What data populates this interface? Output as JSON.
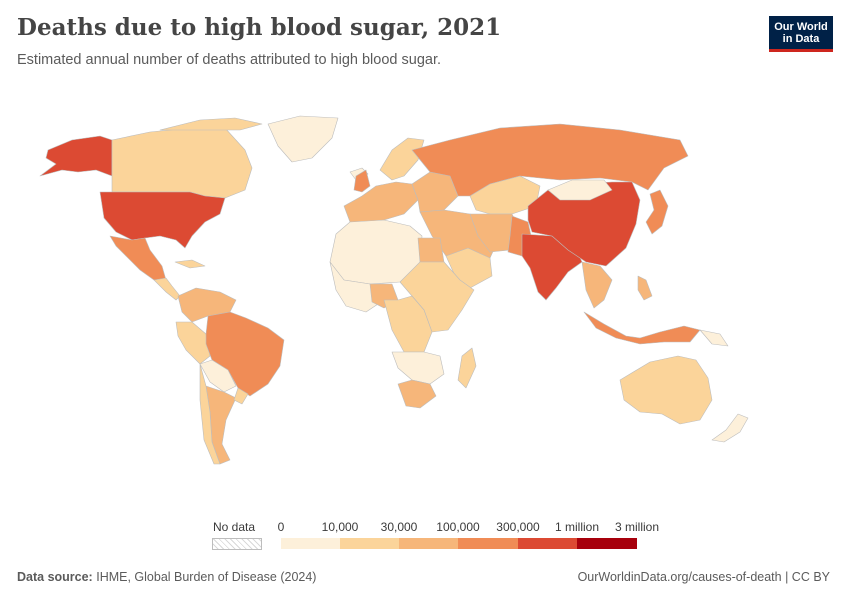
{
  "header": {
    "title": "Deaths due to high blood sugar, 2021",
    "subtitle": "Estimated annual number of deaths attributed to high blood sugar."
  },
  "logo": {
    "line1": "Our World",
    "line2": "in Data"
  },
  "legend": {
    "no_data_label": "No data",
    "ticks": [
      "0",
      "10,000",
      "30,000",
      "100,000",
      "300,000",
      "1 million",
      "3 million"
    ],
    "bin_colors": [
      "#fdf0da",
      "#fbd49a",
      "#f6b67a",
      "#f08c56",
      "#dc4a33",
      "#a7000c"
    ]
  },
  "chart_data": {
    "type": "choropleth",
    "title": "Deaths due to high blood sugar, 2021",
    "subtitle": "Estimated annual number of deaths attributed to high blood sugar.",
    "bins": [
      "0-10,000",
      "10,000-30,000",
      "30,000-100,000",
      "100,000-300,000",
      "300,000-1 million",
      "1 million-3 million"
    ],
    "regions": [
      {
        "name": "United States",
        "bin": 4
      },
      {
        "name": "China",
        "bin": 4
      },
      {
        "name": "India",
        "bin": 4
      },
      {
        "name": "Russia",
        "bin": 3
      },
      {
        "name": "Brazil",
        "bin": 3
      },
      {
        "name": "Mexico",
        "bin": 3
      },
      {
        "name": "Indonesia",
        "bin": 3
      },
      {
        "name": "Japan",
        "bin": 3
      },
      {
        "name": "Pakistan",
        "bin": 3
      },
      {
        "name": "Nigeria",
        "bin": 2
      },
      {
        "name": "Egypt",
        "bin": 2
      },
      {
        "name": "Canada",
        "bin": 1
      },
      {
        "name": "Australia",
        "bin": 1
      },
      {
        "name": "South Africa",
        "bin": 2
      },
      {
        "name": "Argentina",
        "bin": 2
      }
    ]
  },
  "footer": {
    "source_label": "Data source:",
    "source_text": "IHME, Global Burden of Disease (2024)",
    "right_text": "OurWorldinData.org/causes-of-death | CC BY"
  }
}
